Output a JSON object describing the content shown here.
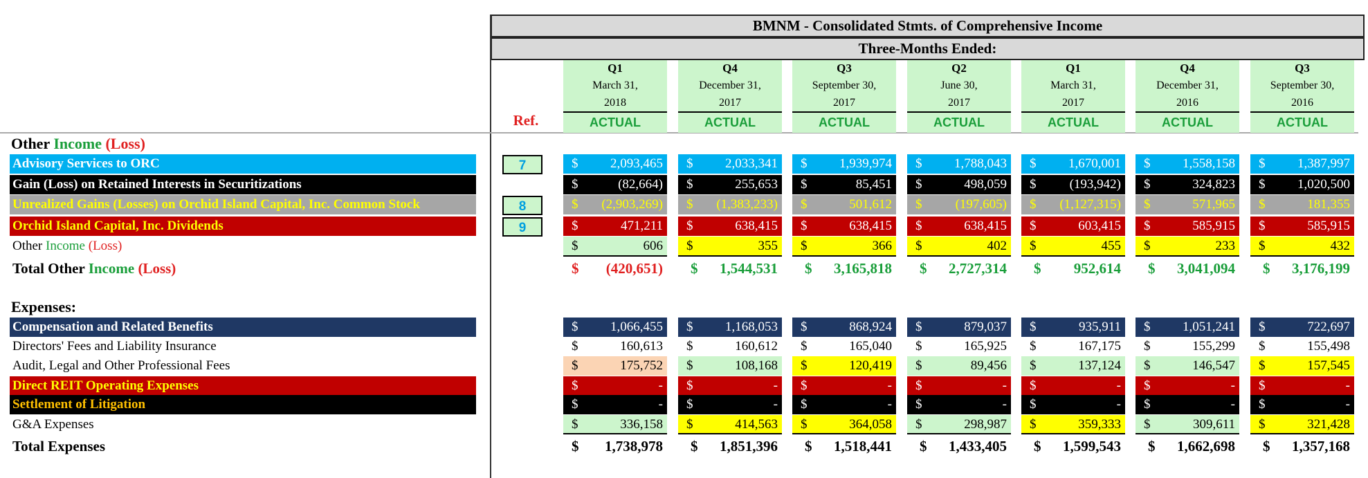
{
  "header": {
    "title": "BMNM - Consolidated Stmts. of Comprehensive Income",
    "subtitle": "Three-Months Ended:",
    "ref_label": "Ref.",
    "columns": [
      {
        "quarter": "Q1",
        "date": "March 31,",
        "year": "2018",
        "status": "ACTUAL"
      },
      {
        "quarter": "Q4",
        "date": "December 31,",
        "year": "2017",
        "status": "ACTUAL"
      },
      {
        "quarter": "Q3",
        "date": "September 30,",
        "year": "2017",
        "status": "ACTUAL"
      },
      {
        "quarter": "Q2",
        "date": "June 30,",
        "year": "2017",
        "status": "ACTUAL"
      },
      {
        "quarter": "Q1",
        "date": "March 31,",
        "year": "2017",
        "status": "ACTUAL"
      },
      {
        "quarter": "Q4",
        "date": "December 31,",
        "year": "2016",
        "status": "ACTUAL"
      },
      {
        "quarter": "Q3",
        "date": "September 30,",
        "year": "2016",
        "status": "ACTUAL"
      }
    ]
  },
  "colors": {
    "cyan": "#00b0f0",
    "black": "#000000",
    "gray": "#a6a6a6",
    "red": "#c00000",
    "navy": "#1f3864",
    "light_green": "#ccf5cc",
    "yellow": "#ffff00",
    "peach": "#fbd4b4",
    "label_green": "#1a9e3a",
    "label_red": "#e02020",
    "label_yellow": "#ffff00",
    "label_gold": "#ffc000"
  },
  "currency": "$",
  "sections": {
    "other_income": [
      {
        "text": "Other ",
        "color": "#000000"
      },
      {
        "text": "Income",
        "color": "#1a9e3a"
      },
      {
        "text": " (Loss)",
        "color": "#e02020"
      }
    ],
    "expenses": "Expenses:"
  },
  "income_rows": [
    {
      "label": [
        {
          "text": "Advisory Services to ORC",
          "color": "#ffffff"
        }
      ],
      "label_bg": "#00b0f0",
      "ref": "7",
      "values": [
        "2,093,465",
        "2,033,341",
        "1,939,974",
        "1,788,043",
        "1,670,001",
        "1,558,158",
        "1,387,997"
      ]
    },
    {
      "label": [
        {
          "text": "Gain (Loss) on Retained Interests in Securitizations",
          "color": "#ffffff"
        }
      ],
      "label_bg": "#000000",
      "ref": "",
      "values": [
        "(82,664)",
        "255,653",
        "85,451",
        "498,059",
        "(193,942)",
        "324,823",
        "1,020,500"
      ]
    },
    {
      "label": [
        {
          "text": "Unrealized Gains (Losses) on Orchid Island Capital, Inc. Common Stock",
          "color": "#ffff00"
        }
      ],
      "label_bg": "#a6a6a6",
      "ref": "8",
      "values": [
        "(2,903,269)",
        "(1,383,233)",
        "501,612",
        "(197,605)",
        "(1,127,315)",
        "571,965",
        "181,355"
      ]
    },
    {
      "label": [
        {
          "text": "Orchid Island Capital, Inc. Dividends",
          "color": "#ffff00"
        }
      ],
      "label_bg": "#c00000",
      "ref": "9",
      "values": [
        "471,211",
        "638,415",
        "638,415",
        "638,415",
        "603,415",
        "585,915",
        "585,915"
      ]
    },
    {
      "label": [
        {
          "text": "Other ",
          "color": "#000000"
        },
        {
          "text": "Income",
          "color": "#1a9e3a"
        },
        {
          "text": " (Loss)",
          "color": "#e02020"
        }
      ],
      "label_bg": "",
      "ref": "",
      "values": [
        "606",
        "355",
        "366",
        "402",
        "455",
        "233",
        "432"
      ]
    }
  ],
  "income_total": {
    "label": [
      {
        "text": "Total Other ",
        "color": "#000000"
      },
      {
        "text": "Income",
        "color": "#1a9e3a"
      },
      {
        "text": " (Loss)",
        "color": "#e02020"
      }
    ],
    "values": [
      "(420,651)",
      "1,544,531",
      "3,165,818",
      "2,727,314",
      "952,614",
      "3,041,094",
      "3,176,199"
    ]
  },
  "expense_rows": [
    {
      "label": [
        {
          "text": "Compensation and Related Benefits",
          "color": "#ffffff"
        }
      ],
      "label_bg": "#1f3864",
      "values": [
        "1,066,455",
        "1,168,053",
        "868,924",
        "879,037",
        "935,911",
        "1,051,241",
        "722,697"
      ]
    },
    {
      "label": [
        {
          "text": "Directors' Fees and Liability Insurance",
          "color": "#000000"
        }
      ],
      "label_bg": "",
      "values": [
        "160,613",
        "160,612",
        "165,040",
        "165,925",
        "167,175",
        "155,299",
        "155,498"
      ]
    },
    {
      "label": [
        {
          "text": "Audit, Legal and Other Professional Fees",
          "color": "#000000"
        }
      ],
      "label_bg": "",
      "values": [
        "175,752",
        "108,168",
        "120,419",
        "89,456",
        "137,124",
        "146,547",
        "157,545"
      ]
    },
    {
      "label": [
        {
          "text": "Direct REIT Operating Expenses",
          "color": "#ffff00"
        }
      ],
      "label_bg": "#c00000",
      "values": [
        "-",
        "-",
        "-",
        "-",
        "-",
        "-",
        "-"
      ]
    },
    {
      "label": [
        {
          "text": "Settlement of Litigation",
          "color": "#ffc000"
        }
      ],
      "label_bg": "#000000",
      "values": [
        "-",
        "-",
        "-",
        "-",
        "-",
        "-",
        "-"
      ]
    },
    {
      "label": [
        {
          "text": "G&A Expenses",
          "color": "#000000"
        }
      ],
      "label_bg": "",
      "values": [
        "336,158",
        "414,563",
        "364,058",
        "298,987",
        "359,333",
        "309,611",
        "321,428"
      ]
    }
  ],
  "expense_total": {
    "label": [
      {
        "text": "Total Expenses",
        "color": "#000000"
      }
    ],
    "values": [
      "1,738,978",
      "1,851,396",
      "1,518,441",
      "1,433,405",
      "1,599,543",
      "1,662,698",
      "1,357,168"
    ]
  }
}
